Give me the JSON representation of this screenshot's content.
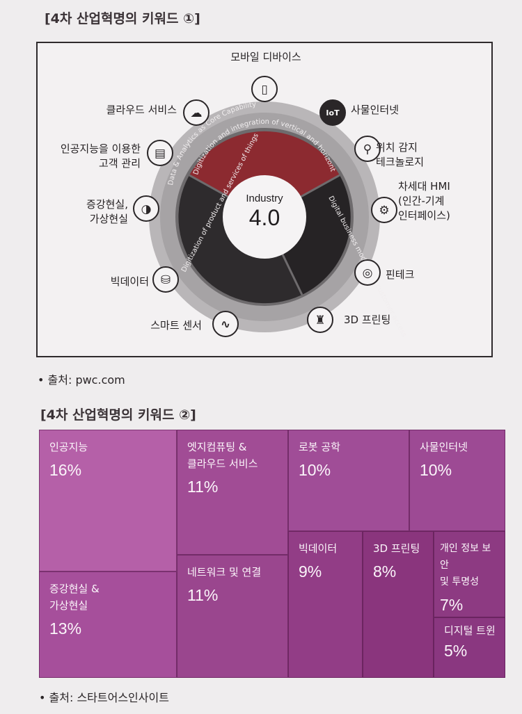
{
  "figure1": {
    "title": "[4차 산업혁명의 키워드 ①]",
    "center": {
      "line1": "Industry",
      "line2": "4.0"
    },
    "ring_texts": {
      "outer": "Data & Analytics as Core Capability",
      "top": "Digitization and integration of vertical and horizontal value chain",
      "right": "Digital business models and customer access",
      "left": "Digitization of product and services of things"
    },
    "keywords": [
      {
        "label": "모바일 디바이스",
        "icon": "mobile-device-icon"
      },
      {
        "label": "사물인터넷",
        "icon": "iot-icon"
      },
      {
        "label": "위치 감지\n테크놀로지",
        "icon": "location-pin-icon"
      },
      {
        "label": "차세대 HMI\n(인간-기계\n인터페이스)",
        "icon": "hmi-gear-icon"
      },
      {
        "label": "핀테크",
        "icon": "fingerprint-icon"
      },
      {
        "label": "3D 프린팅",
        "icon": "3d-printer-icon"
      },
      {
        "label": "스마트 센서",
        "icon": "sensor-wave-icon"
      },
      {
        "label": "빅데이터",
        "icon": "database-plus-icon"
      },
      {
        "label": "증강현실,\n가상현실",
        "icon": "vr-headset-icon"
      },
      {
        "label": "인공지능을 이용한\n고객 관리",
        "icon": "id-card-icon"
      },
      {
        "label": "클라우드 서비스",
        "icon": "cloud-upload-icon"
      }
    ],
    "source": "• 출처: pwc.com",
    "colors": {
      "red": "#8c2a30",
      "dark": "#262325",
      "grey": "#8b888a"
    }
  },
  "figure2": {
    "title": "[4차 산업혁명의 키워드 ②]",
    "cells": [
      {
        "name": "인공지능",
        "pct": "16%",
        "color": "#b560a8"
      },
      {
        "name": "증강현실 &\n가상현실",
        "pct": "13%",
        "color": "#a64f9b"
      },
      {
        "name": "엣지컴퓨팅 &\n클라우드 서비스",
        "pct": "11%",
        "color": "#a14c95"
      },
      {
        "name": "네트워크 및 연결",
        "pct": "11%",
        "color": "#9a468e"
      },
      {
        "name": "로봇 공학",
        "pct": "10%",
        "color": "#a04d97"
      },
      {
        "name": "사물인터넷",
        "pct": "10%",
        "color": "#9d4a94"
      },
      {
        "name": "빅데이터",
        "pct": "9%",
        "color": "#923d86"
      },
      {
        "name": "3D 프린팅",
        "pct": "8%",
        "color": "#8a357d"
      },
      {
        "name": "개인 정보 보안\n및 투명성",
        "pct": "7%",
        "color": "#8d3a82"
      },
      {
        "name": "디지털 트윈",
        "pct": "5%",
        "color": "#8a3780"
      }
    ],
    "source": "• 출처: 스타트어스인사이트"
  }
}
